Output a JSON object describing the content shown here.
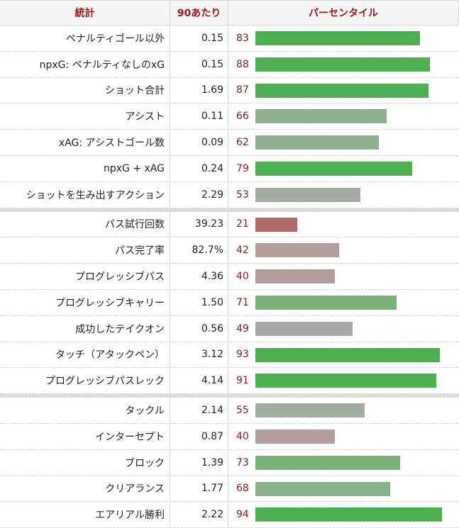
{
  "header": {
    "stat": "統計",
    "per90": "90あたり",
    "percentile": "パーセンタイル"
  },
  "colors": {
    "header_text": "#a01818",
    "percentile_text": "#8b1a1a",
    "bar_high": "#4caf50",
    "bar_mid_high": "#7ab27a",
    "bar_mid": "#a5b3a5",
    "bar_low": "#b39a9a",
    "bar_very_low": "#b06666"
  },
  "chart_data": {
    "type": "bar",
    "orientation": "horizontal",
    "xlim": [
      0,
      100
    ],
    "groups": [
      {
        "rows": [
          {
            "stat": "ペナルティゴール以外",
            "per90": "0.15",
            "percentile": 83,
            "color": "#4caf50"
          },
          {
            "stat": "npxG: ペナルティなしのxG",
            "per90": "0.15",
            "percentile": 88,
            "color": "#4caf50"
          },
          {
            "stat": "ショット合計",
            "per90": "1.69",
            "percentile": 87,
            "color": "#4caf50"
          },
          {
            "stat": "アシスト",
            "per90": "0.11",
            "percentile": 66,
            "color": "#8fb08f"
          },
          {
            "stat": "xAG: アシストゴール数",
            "per90": "0.09",
            "percentile": 62,
            "color": "#8fb08f"
          },
          {
            "stat": "npxG + xAG",
            "per90": "0.24",
            "percentile": 79,
            "color": "#4caf50"
          },
          {
            "stat": "ショットを生み出すアクション",
            "per90": "2.29",
            "percentile": 53,
            "color": "#a3aba3"
          }
        ]
      },
      {
        "rows": [
          {
            "stat": "パス試行回数",
            "per90": "39.23",
            "percentile": 21,
            "color": "#b06868"
          },
          {
            "stat": "パス完了率",
            "per90": "82.7%",
            "percentile": 42,
            "color": "#b39c9c"
          },
          {
            "stat": "プログレッシブパス",
            "per90": "4.36",
            "percentile": 40,
            "color": "#b39c9c"
          },
          {
            "stat": "プログレッシブキャリー",
            "per90": "1.50",
            "percentile": 71,
            "color": "#7ab27a"
          },
          {
            "stat": "成功したテイクオン",
            "per90": "0.56",
            "percentile": 49,
            "color": "#a9a9a9"
          },
          {
            "stat": "タッチ（アタックペン）",
            "per90": "3.12",
            "percentile": 93,
            "color": "#4caf50"
          },
          {
            "stat": "プログレッシブパスレック",
            "per90": "4.14",
            "percentile": 91,
            "color": "#4caf50"
          }
        ]
      },
      {
        "rows": [
          {
            "stat": "タックル",
            "per90": "2.14",
            "percentile": 55,
            "color": "#a0ae9f"
          },
          {
            "stat": "インターセプト",
            "per90": "0.87",
            "percentile": 40,
            "color": "#b39c9c"
          },
          {
            "stat": "ブロック",
            "per90": "1.39",
            "percentile": 73,
            "color": "#7ab27a"
          },
          {
            "stat": "クリアランス",
            "per90": "1.77",
            "percentile": 68,
            "color": "#8ab28a"
          },
          {
            "stat": "エアリアル勝利",
            "per90": "2.22",
            "percentile": 94,
            "color": "#4caf50"
          }
        ]
      }
    ]
  }
}
